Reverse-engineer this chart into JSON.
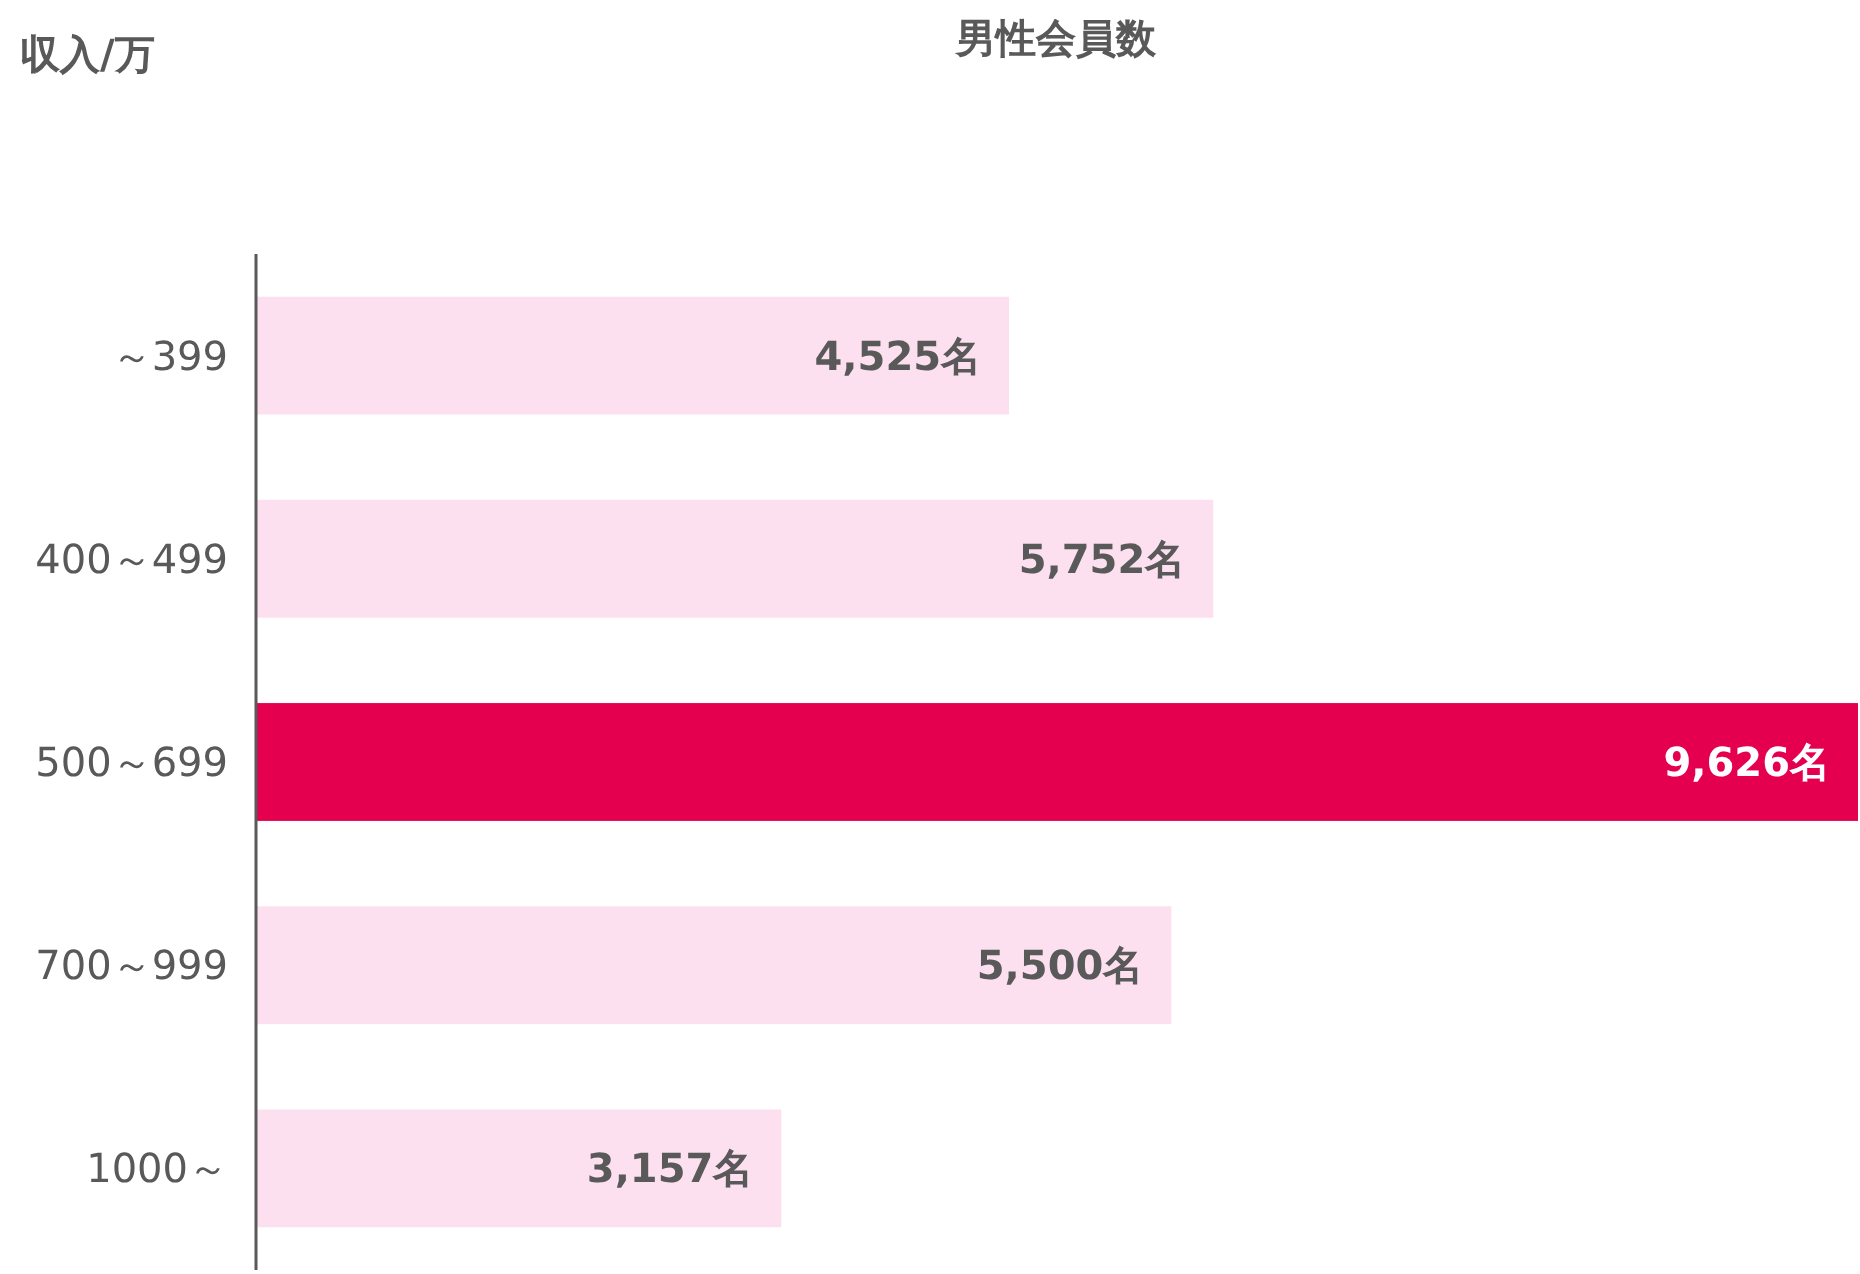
{
  "chart_data": {
    "type": "bar",
    "orientation": "horizontal",
    "title": "男性会員数",
    "ylabel": "収入/万",
    "categories": [
      "～399",
      "400～499",
      "500～699",
      "700～999",
      "1000～"
    ],
    "values": [
      4525,
      5752,
      9626,
      5500,
      3157
    ],
    "colors": [
      "#fde0ef",
      "#fde0ef",
      "#e5004f",
      "#fde0ef",
      "#fde0ef"
    ],
    "value_labels": [
      "4,525名",
      "5,752名",
      "9,626名",
      "5,500名",
      "3,157名"
    ]
  }
}
